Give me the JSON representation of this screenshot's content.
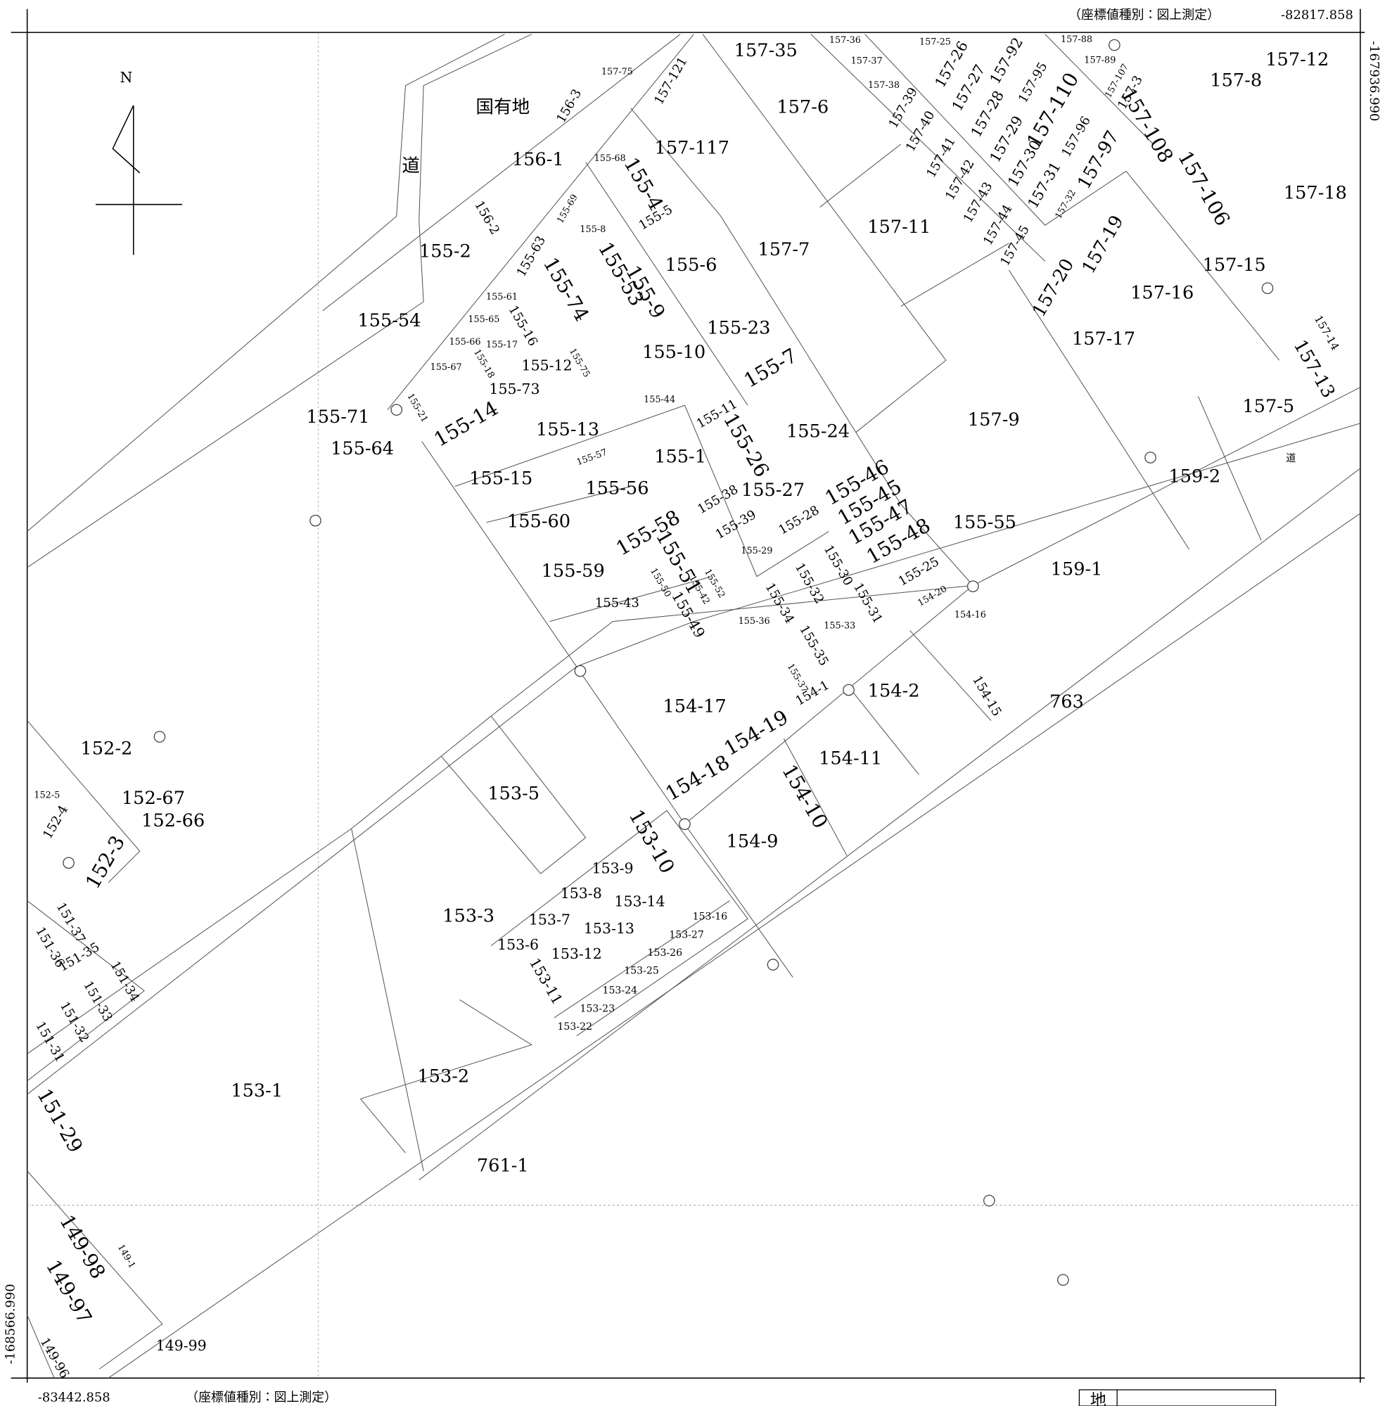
{
  "header": {
    "coord_type_top": "（座標値種別：図上測定）",
    "x_top": "-82817.858",
    "y_right": "-167936.990",
    "y_left": "-168566.990",
    "x_bottom": "-83442.858",
    "coord_type_bottom": "（座標値種別：図上測定）",
    "north": "N",
    "legend": "地"
  },
  "parcels": [
    "国有地",
    "道",
    "156-1",
    "156-3",
    "157-75",
    "157-121",
    "157-35",
    "157-36",
    "157-37",
    "157-38",
    "157-25",
    "157-88",
    "157-89",
    "157-6",
    "157-117",
    "157-39",
    "157-26",
    "157-92",
    "157-40",
    "157-27",
    "157-95",
    "157-110",
    "157-41",
    "157-28",
    "157-29",
    "157-96",
    "157-42",
    "157-30",
    "157-97",
    "157-43",
    "157-31",
    "157-32",
    "157-44",
    "157-45",
    "157-107",
    "157-3",
    "157-108",
    "157-8",
    "157-12",
    "157-18",
    "157-106",
    "157-7",
    "157-11",
    "157-19",
    "157-20",
    "157-15",
    "157-16",
    "157-17",
    "157-14",
    "157-13",
    "157-9",
    "157-5",
    "159-2",
    "道",
    "159-1",
    "155-55",
    "156-2",
    "155-2",
    "155-63",
    "155-69",
    "155-68",
    "155-4",
    "155-8",
    "155-5",
    "155-6",
    "155-53",
    "155-9",
    "155-74",
    "155-54",
    "155-61",
    "155-65",
    "155-16",
    "155-66",
    "155-17",
    "155-67",
    "155-18",
    "155-12",
    "155-75",
    "155-73",
    "155-23",
    "155-10",
    "155-7",
    "155-44",
    "155-71",
    "155-21",
    "155-14",
    "155-13",
    "155-64",
    "155-11",
    "155-26",
    "155-24",
    "155-1",
    "155-57",
    "155-15",
    "155-56",
    "155-27",
    "155-46",
    "155-45",
    "155-47",
    "155-48",
    "155-38",
    "155-39",
    "155-28",
    "155-60",
    "155-58",
    "155-29",
    "155-51",
    "155-52",
    "155-30",
    "155-25",
    "155-59",
    "155-50",
    "155-42",
    "155-49",
    "155-32",
    "155-31",
    "155-43",
    "155-36",
    "155-34",
    "155-33",
    "155-35",
    "154-20",
    "154-16",
    "155-37",
    "154-1",
    "154-2",
    "154-15",
    "763",
    "154-17",
    "154-19",
    "154-11",
    "154-18",
    "154-10",
    "153-5",
    "154-9",
    "153-10",
    "153-9",
    "153-8",
    "153-14",
    "153-3",
    "153-7",
    "153-13",
    "153-16",
    "153-27",
    "153-6",
    "153-12",
    "153-26",
    "153-11",
    "153-25",
    "153-24",
    "153-23",
    "153-22",
    "153-2",
    "153-1",
    "761-1",
    "152-2",
    "152-5",
    "152-67",
    "152-4",
    "152-66",
    "152-3",
    "151-37",
    "151-36",
    "151-35",
    "151-34",
    "151-33",
    "151-32",
    "151-31",
    "151-29",
    "149-98",
    "149-97",
    "149-1",
    "149-99",
    "149-96"
  ]
}
